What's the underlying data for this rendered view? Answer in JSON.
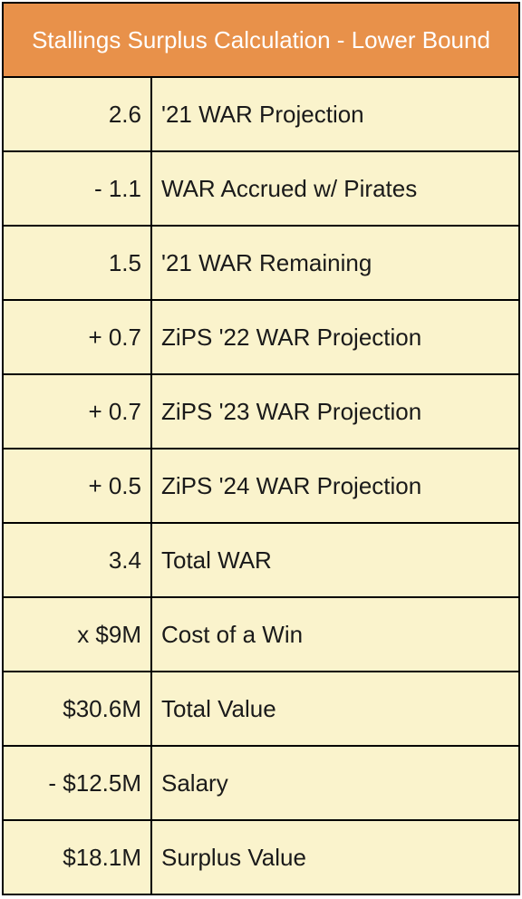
{
  "table": {
    "title": "Stallings Surplus Calculation - Lower Bound",
    "rows": [
      {
        "value": "2.6",
        "label": "'21 WAR Projection"
      },
      {
        "value": "- 1.1",
        "label": "WAR Accrued w/ Pirates"
      },
      {
        "value": "1.5",
        "label": "'21 WAR Remaining"
      },
      {
        "value": "+ 0.7",
        "label": "ZiPS '22 WAR Projection"
      },
      {
        "value": "+ 0.7",
        "label": "ZiPS '23 WAR Projection"
      },
      {
        "value": "+ 0.5",
        "label": "ZiPS '24 WAR Projection"
      },
      {
        "value": "3.4",
        "label": "Total WAR"
      },
      {
        "value": "x $9M",
        "label": "Cost of a Win"
      },
      {
        "value": "$30.6M",
        "label": "Total Value"
      },
      {
        "value": "- $12.5M",
        "label": "Salary"
      },
      {
        "value": "$18.1M",
        "label": "Surplus Value"
      }
    ]
  },
  "colors": {
    "header_bg": "#e8914a",
    "cell_bg": "#faf3cc",
    "border": "#000000"
  }
}
